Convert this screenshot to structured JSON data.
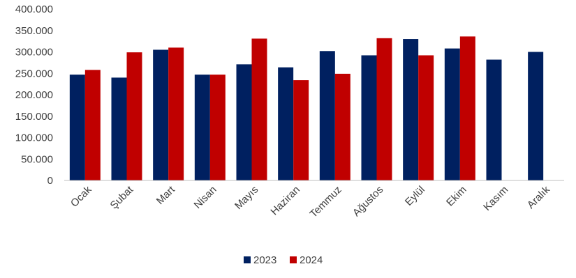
{
  "chart_data": {
    "type": "bar",
    "categories": [
      "Ocak",
      "Şubat",
      "Mart",
      "Nisan",
      "Mayıs",
      "Haziran",
      "Temmuz",
      "Ağustos",
      "Eylül",
      "Ekim",
      "Kasım",
      "Aralık"
    ],
    "series": [
      {
        "name": "2023",
        "color": "#002060",
        "values": [
          247000,
          240000,
          305000,
          247000,
          271000,
          264000,
          302000,
          292000,
          330000,
          308000,
          282000,
          300000
        ]
      },
      {
        "name": "2024",
        "color": "#C00000",
        "values": [
          258000,
          299000,
          310000,
          247000,
          331000,
          234000,
          249000,
          332000,
          292000,
          336000,
          null,
          null
        ]
      }
    ],
    "yticks": [
      "0",
      "50.000",
      "100.000",
      "150.000",
      "200.000",
      "250.000",
      "300.000",
      "350.000",
      "400.000"
    ],
    "ylim": [
      0,
      400000
    ],
    "legend_position": "bottom",
    "grid": false
  }
}
